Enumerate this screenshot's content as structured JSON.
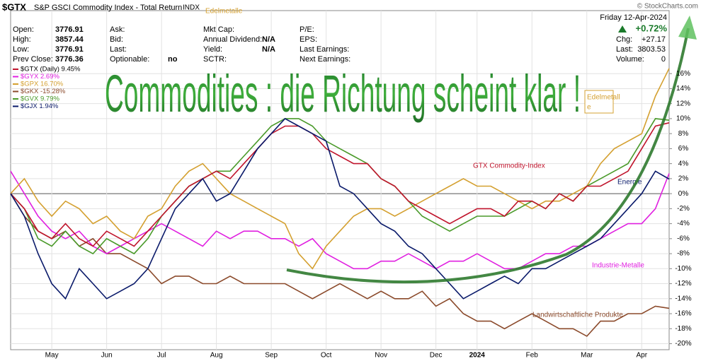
{
  "chart_data": {
    "type": "line",
    "symbol": "$GTX",
    "description": "S&P GSCI Commodity Index - Total Return",
    "exchange": "INDX",
    "source": "© StockCharts.com",
    "date": "Friday  12-Apr-2024",
    "change_percent": "+0.72%",
    "field_columns": [
      [
        {
          "label": "Open:",
          "value": 3776.91
        },
        {
          "label": "High:",
          "value": 3857.44
        },
        {
          "label": "Low:",
          "value": 3776.91
        },
        {
          "label": "Prev Close:",
          "value": 3776.36
        }
      ],
      [
        {
          "label": "Ask:"
        },
        {
          "label": "Bid:"
        },
        {
          "label": "Last:"
        },
        {
          "label": "Optionable:",
          "value": "no"
        }
      ],
      [
        {
          "label": "Mkt Cap:"
        },
        {
          "label": "Annual Dividend:",
          "value": "N/A"
        },
        {
          "label": "Yield:",
          "value": "N/A"
        },
        {
          "label": "SCTR:"
        }
      ],
      [
        {
          "label": "P/E:"
        },
        {
          "label": "EPS:"
        },
        {
          "label": "Last Earnings:"
        },
        {
          "label": "Next Earnings:"
        }
      ]
    ],
    "quote_fields": [
      {
        "label": "Chg:",
        "value": "+27.17"
      },
      {
        "label": "Last:",
        "value": 3803.53
      },
      {
        "label": "Volume:",
        "value": 0
      }
    ],
    "title": "Commodities : die Richtung scheint klar !",
    "annotations": {
      "top": "Edelmetalle",
      "precious_box": [
        "Edelmetall",
        "e"
      ],
      "gtx": "GTX Commodity-Index",
      "energy": "Energie",
      "industrial": "Industrie-Metalle",
      "agriculture": "Landwirtschaftliche Produkte"
    },
    "categories": [
      null,
      null,
      null,
      "May",
      null,
      null,
      null,
      "Jun",
      null,
      null,
      null,
      "Jul",
      null,
      null,
      null,
      "Aug",
      null,
      null,
      null,
      "Sep",
      null,
      null,
      null,
      "Oct",
      null,
      null,
      null,
      "Nov",
      null,
      null,
      null,
      "Dec",
      null,
      null,
      "2024",
      null,
      null,
      null,
      "Feb",
      null,
      null,
      null,
      "Mar",
      null,
      null,
      null,
      "Apr",
      null,
      null
    ],
    "series": [
      {
        "name": "$GKX -15.28%",
        "color": "#8b4a2b",
        "values": [
          0,
          -3,
          -5,
          -6,
          -5,
          -7,
          -6,
          -8,
          -8,
          -9,
          -10,
          -12,
          -11,
          -11,
          -12,
          -12,
          -11,
          -12,
          -12,
          -12,
          -12,
          -13,
          -14,
          -13,
          -12,
          -13,
          -14,
          -13,
          -14,
          -14,
          -13,
          -15,
          -14,
          -16,
          -17,
          -17,
          -18,
          -17,
          -16,
          -17,
          -18,
          -18,
          -19,
          -17,
          -17,
          -16,
          -16,
          -15,
          -15.28
        ]
      },
      {
        "name": "$GYX 2.69%",
        "color": "#e020e0",
        "values": [
          3,
          0,
          -3,
          -5,
          -6,
          -5,
          -7,
          -8,
          -7,
          -6,
          -5,
          -4,
          -5,
          -6,
          -7,
          -5,
          -6,
          -5,
          -5,
          -6,
          -6,
          -7,
          -6,
          -8,
          -9,
          -10,
          -10,
          -9,
          -9,
          -8,
          -9,
          -10,
          -9,
          -9,
          -8,
          -9,
          -10,
          -10,
          -9,
          -8,
          -8,
          -7,
          -7,
          -6,
          -5,
          -4,
          -4,
          -2,
          2.69
        ]
      },
      {
        "name": "$GPX 16.70%",
        "color": "#d4a030",
        "values": [
          0,
          2,
          -1,
          -3,
          -1,
          -2,
          -4,
          -3,
          -5,
          -6,
          -3,
          -2,
          1,
          3,
          4,
          2,
          0,
          -1,
          -2,
          -3,
          -4,
          -8,
          -10,
          -7,
          -5,
          -3,
          -2,
          -2,
          -3,
          -2,
          -1,
          0,
          1,
          2,
          1,
          1,
          0,
          -1,
          -2,
          -1,
          -1,
          0,
          1,
          4,
          6,
          7,
          8,
          13,
          16.7
        ]
      },
      {
        "name": "$GVX 9.79%",
        "color": "#4a9a2a",
        "values": [
          0,
          -2,
          -6,
          -7,
          -5,
          -7,
          -8,
          -6,
          -7,
          -8,
          -6,
          -3,
          -1,
          1,
          2,
          3,
          3,
          5,
          7,
          9,
          10,
          10,
          9,
          7,
          6,
          5,
          4,
          2,
          1,
          -1,
          -3,
          -4,
          -5,
          -4,
          -3,
          -3,
          -3,
          -2,
          -1,
          -2,
          0,
          -1,
          1,
          2,
          3,
          4,
          7,
          10,
          9.79
        ]
      },
      {
        "name": "$GTX (Daily) 9.45%",
        "color": "#c0142c",
        "values": [
          0,
          -2,
          -5,
          -6,
          -4,
          -6,
          -7,
          -5,
          -6,
          -7,
          -5,
          -3,
          -1,
          1,
          2,
          3,
          2,
          4,
          6,
          8,
          9,
          9,
          8,
          6,
          5,
          4,
          4,
          2,
          1,
          -1,
          -2,
          -3,
          -4,
          -3,
          -2,
          -2,
          -3,
          -1,
          -1,
          -2,
          0,
          -1,
          1,
          1,
          2,
          3,
          6,
          9,
          9.45
        ]
      },
      {
        "name": "$GJX 1.94%",
        "color": "#0a1a6a",
        "values": [
          0,
          -3,
          -8,
          -12,
          -14,
          -10,
          -12,
          -14,
          -13,
          -12,
          -10,
          -6,
          -2,
          0,
          2,
          -1,
          0,
          3,
          6,
          8,
          10,
          9,
          8,
          7,
          1,
          0,
          -2,
          -4,
          -5,
          -7,
          -8,
          -10,
          -12,
          -14,
          -13,
          -12,
          -11,
          -12,
          -10,
          -10,
          -9,
          -8,
          -7,
          -6,
          -4,
          -2,
          0,
          3,
          1.94
        ]
      }
    ],
    "legend_order": [
      4,
      1,
      2,
      0,
      3,
      5
    ],
    "ylim": [
      -20.8,
      24.4
    ],
    "yticks": [
      {
        "value": -20,
        "label": "-20%"
      },
      {
        "value": -18,
        "label": "-18%"
      },
      {
        "value": -16,
        "label": "-16%"
      },
      {
        "value": -14,
        "label": "-14%"
      },
      {
        "value": -12,
        "label": "-12%"
      },
      {
        "value": -10,
        "label": "-10%"
      },
      {
        "value": -8,
        "label": "-8%"
      },
      {
        "value": -6,
        "label": "-6%"
      },
      {
        "value": -4,
        "label": "-4%"
      },
      {
        "value": -2,
        "label": "-2%"
      },
      {
        "value": 0,
        "label": "0%"
      },
      {
        "value": 2,
        "label": "2%"
      },
      {
        "value": 4,
        "label": "4%"
      },
      {
        "value": 6,
        "label": "6%"
      },
      {
        "value": 8,
        "label": "8%"
      },
      {
        "value": 10,
        "label": "10%"
      },
      {
        "value": 12,
        "label": "12%"
      },
      {
        "value": 14,
        "label": "14%"
      },
      {
        "value": 16,
        "label": "16%"
      }
    ],
    "grid": true
  }
}
